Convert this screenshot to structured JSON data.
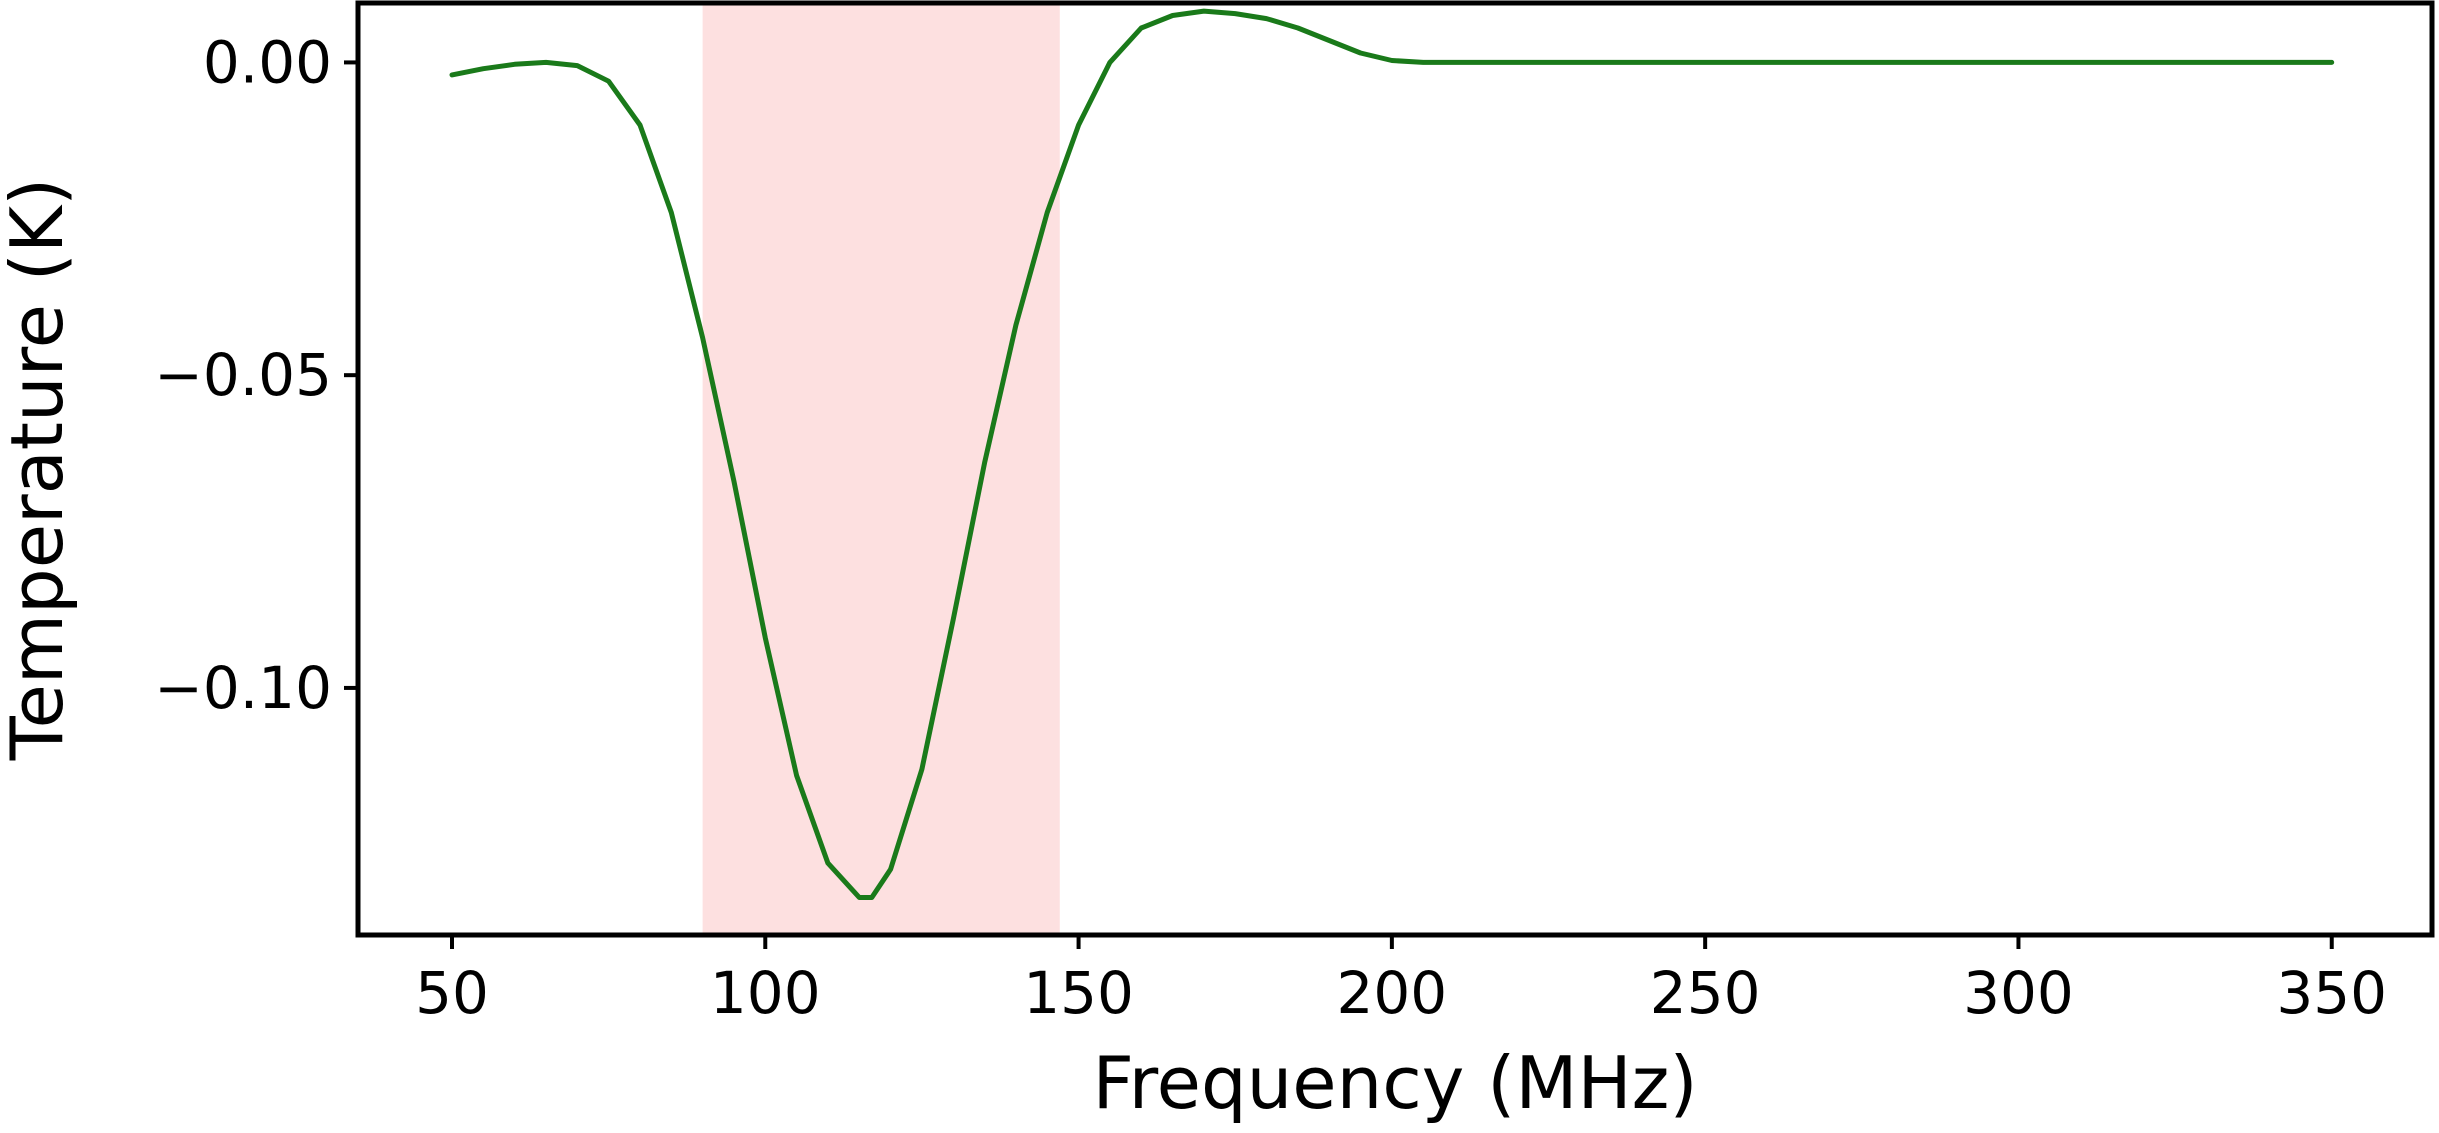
{
  "chart_data": {
    "type": "line",
    "xlabel": "Frequency (MHz)",
    "ylabel": "Temperature (K)",
    "xlim": [
      35,
      366
    ],
    "ylim": [
      -0.1395,
      0.0095
    ],
    "xticks": [
      50,
      100,
      150,
      200,
      250,
      300,
      350
    ],
    "xtick_labels": [
      "50",
      "100",
      "150",
      "200",
      "250",
      "300",
      "350"
    ],
    "yticks": [
      0.0,
      -0.05,
      -0.1
    ],
    "ytick_labels": [
      "0.00",
      "−0.05",
      "−0.10"
    ],
    "grid": false,
    "legend": "none",
    "shaded_band": {
      "x_start": 90,
      "x_end": 147,
      "color": "#fde0e0"
    },
    "series": [
      {
        "color": "#1a7a1a",
        "x": [
          50,
          55,
          60,
          65,
          70,
          75,
          80,
          85,
          90,
          95,
          100,
          105,
          110,
          115,
          117,
          120,
          125,
          130,
          135,
          140,
          145,
          150,
          155,
          160,
          165,
          170,
          175,
          180,
          185,
          190,
          195,
          200,
          205,
          210,
          220,
          250,
          300,
          350
        ],
        "y": [
          -0.002,
          -0.001,
          -0.0003,
          0.0,
          -0.0005,
          -0.003,
          -0.01,
          -0.024,
          -0.044,
          -0.067,
          -0.092,
          -0.114,
          -0.128,
          -0.1335,
          -0.1335,
          -0.129,
          -0.113,
          -0.089,
          -0.064,
          -0.042,
          -0.024,
          -0.01,
          0.0,
          0.0055,
          0.0075,
          0.0082,
          0.0078,
          0.007,
          0.0055,
          0.0035,
          0.0015,
          0.0003,
          0.0,
          0.0,
          0.0,
          0.0,
          0.0,
          0.0
        ]
      }
    ]
  }
}
